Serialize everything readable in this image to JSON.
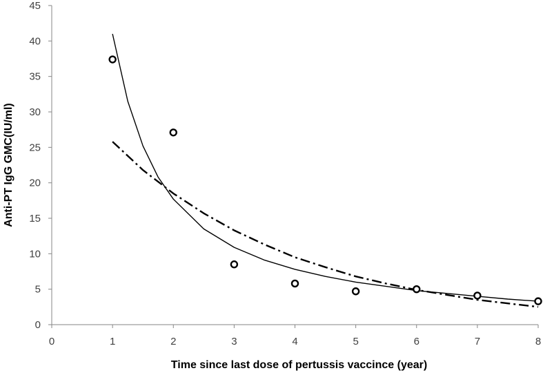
{
  "chart_data": {
    "type": "scatter",
    "title": "",
    "xlabel": "Time since last dose of pertussis vaccince (year)",
    "ylabel": "Anti-PT IgG GMC(IU/ml)",
    "xlim": [
      0,
      8
    ],
    "ylim": [
      0,
      45
    ],
    "xticks": [
      "0",
      "1",
      "2",
      "3",
      "4",
      "5",
      "6",
      "7",
      "8"
    ],
    "yticks": [
      "0",
      "5",
      "10",
      "15",
      "20",
      "25",
      "30",
      "35",
      "40",
      "45"
    ],
    "grid": false,
    "legend": "none",
    "series": [
      {
        "kind": "markers",
        "marker": "open-circle",
        "color": "#000000",
        "x": [
          1,
          2,
          3,
          4,
          5,
          6,
          7,
          8
        ],
        "y": [
          37.4,
          27.1,
          8.5,
          5.8,
          4.7,
          5.0,
          4.1,
          3.3
        ]
      },
      {
        "kind": "fit-line",
        "style": "solid",
        "color": "#000000",
        "x": [
          1,
          1.25,
          1.5,
          1.75,
          2,
          2.5,
          3,
          3.5,
          4,
          4.5,
          5,
          5.5,
          6,
          6.5,
          7,
          7.5,
          8
        ],
        "y": [
          41.0,
          31.5,
          25.2,
          20.8,
          17.7,
          13.5,
          10.9,
          9.1,
          7.8,
          6.8,
          6.0,
          5.4,
          4.8,
          4.4,
          4.0,
          3.6,
          3.3
        ]
      },
      {
        "kind": "fit-line",
        "style": "dash-dot",
        "color": "#000000",
        "x": [
          1,
          1.5,
          2,
          2.5,
          3,
          3.5,
          4,
          4.5,
          5,
          5.5,
          6,
          6.5,
          7,
          7.5,
          8
        ],
        "y": [
          25.8,
          21.8,
          18.5,
          15.7,
          13.3,
          11.3,
          9.5,
          8.1,
          6.8,
          5.8,
          4.9,
          4.2,
          3.5,
          3.0,
          2.5
        ]
      }
    ]
  }
}
